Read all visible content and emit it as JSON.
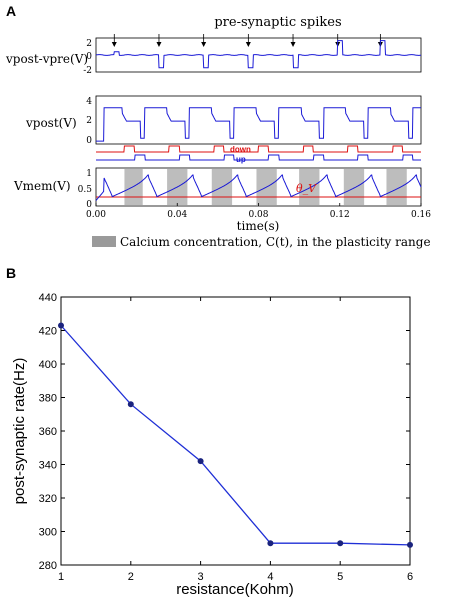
{
  "panel_a": {
    "letter": "A",
    "annotation": "pre-synaptic spikes",
    "row_labels": [
      "vpost-vpre(V)",
      "vpost(V)",
      "Vmem(V)"
    ],
    "row1_yticks": [
      "2",
      "0",
      "-2"
    ],
    "row2_yticks": [
      "4",
      "2",
      "0"
    ],
    "row3_yticks": [
      "1",
      "0.5",
      "0"
    ],
    "down_label": "down",
    "up_label": "up",
    "theta_label": "θ_V",
    "xticks": [
      "0.00",
      "0.04",
      "0.08",
      "0.12",
      "0.16"
    ],
    "xlabel": "time(s)",
    "legend": "Calcium concentration, C(t), in the plasticity range",
    "colors": {
      "trace": "#1a1ad6",
      "down": "#dd1111",
      "gray": "#bdbdbd"
    }
  },
  "panel_b": {
    "letter": "B"
  },
  "chart_data": [
    {
      "type": "line",
      "title": "",
      "xlabel": "time(s)",
      "xlim": [
        0.0,
        0.16
      ],
      "xticks": [
        0.0,
        0.04,
        0.08,
        0.12,
        0.16
      ],
      "rows": [
        {
          "ylabel": "vpost-vpre(V)",
          "ylim": [
            -2,
            2
          ]
        },
        {
          "ylabel": "vpost(V)",
          "ylim": [
            0,
            4
          ]
        },
        {
          "ylabel": "Vmem(V)",
          "ylim": [
            0,
            1
          ],
          "threshold_label": "θ_V"
        }
      ],
      "presynaptic_spike_times": [
        0.009,
        0.031,
        0.053,
        0.075,
        0.097,
        0.119,
        0.14
      ],
      "calcium_in_range_intervals": [
        [
          0.014,
          0.023
        ],
        [
          0.035,
          0.045
        ],
        [
          0.057,
          0.067
        ],
        [
          0.079,
          0.089
        ],
        [
          0.1,
          0.11
        ],
        [
          0.122,
          0.132
        ],
        [
          0.143,
          0.153
        ]
      ],
      "legend": [
        "Calcium concentration, C(t), in the plasticity range"
      ]
    },
    {
      "type": "line",
      "title": "",
      "xlabel": "resistance(Kohm)",
      "ylabel": "post-synaptic rate(Hz)",
      "x": [
        1,
        2,
        3,
        4,
        5,
        6
      ],
      "series": [
        {
          "values": [
            423,
            376,
            342,
            293,
            293,
            292
          ]
        }
      ],
      "xlim": [
        1,
        6
      ],
      "ylim": [
        280,
        440
      ],
      "xticks": [
        1,
        2,
        3,
        4,
        5,
        6
      ],
      "yticks": [
        280,
        300,
        320,
        340,
        360,
        380,
        400,
        420,
        440
      ],
      "grid": false,
      "color": "#1f2fd6"
    }
  ]
}
